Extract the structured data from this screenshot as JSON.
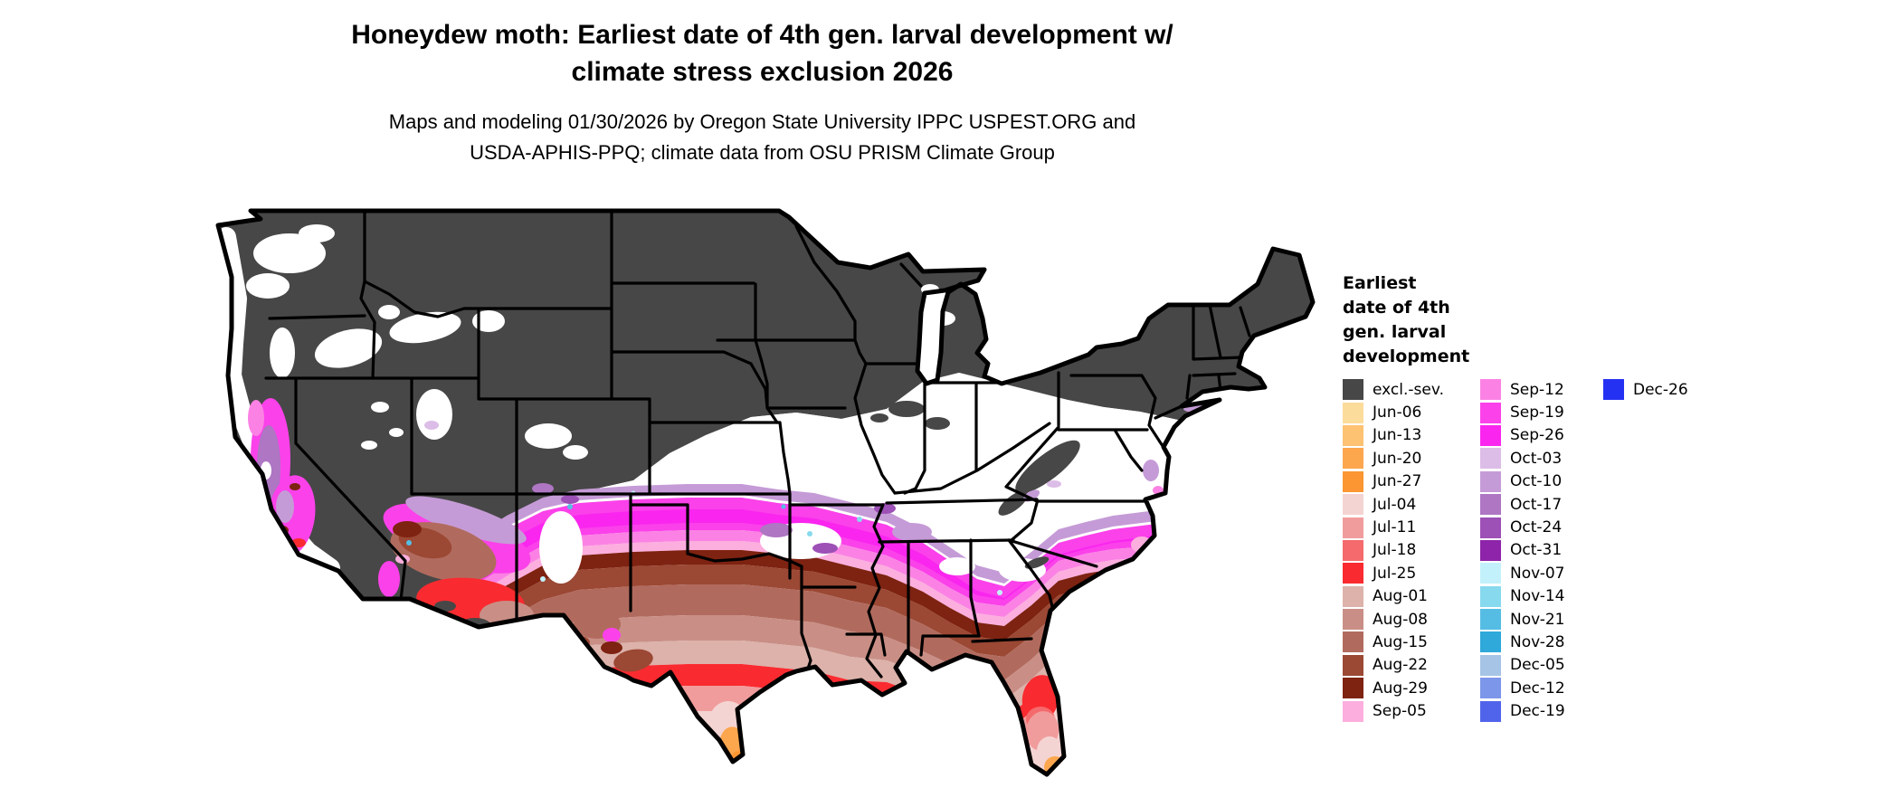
{
  "title": {
    "line1": "Honeydew moth: Earliest date of 4th gen. larval development w/",
    "line2": "climate stress exclusion 2026"
  },
  "subtitle": {
    "line1": "Maps and modeling 01/30/2026 by Oregon State University IPPC USPEST.ORG and",
    "line2": "USDA-APHIS-PPQ; climate data from OSU PRISM Climate Group"
  },
  "legend": {
    "title_lines": [
      "Earliest",
      "date of 4th",
      "gen. larval",
      "development"
    ],
    "columns": [
      [
        "excl.-sev.",
        "Jun-06",
        "Jun-13",
        "Jun-20",
        "Jun-27",
        "Jul-04",
        "Jul-11",
        "Jul-18",
        "Jul-25",
        "Aug-01",
        "Aug-08",
        "Aug-15",
        "Aug-22",
        "Aug-29",
        "Sep-05"
      ],
      [
        "Sep-12",
        "Sep-19",
        "Sep-26",
        "Oct-03",
        "Oct-10",
        "Oct-17",
        "Oct-24",
        "Oct-31",
        "Nov-07",
        "Nov-14",
        "Nov-21",
        "Nov-28",
        "Dec-05",
        "Dec-12",
        "Dec-19"
      ],
      [
        "Dec-26"
      ]
    ]
  },
  "colors": {
    "excl.-sev.": "#474747",
    "Jun-06": "#fcdc9a",
    "Jun-13": "#fdc272",
    "Jun-20": "#fca64e",
    "Jun-27": "#fb9632",
    "Jul-04": "#f4d4d2",
    "Jul-11": "#f19c9c",
    "Jul-18": "#f56a6c",
    "Jul-25": "#f92b30",
    "Aug-01": "#dcb2aa",
    "Aug-08": "#c98f86",
    "Aug-15": "#b16b5e",
    "Aug-22": "#9b4834",
    "Aug-29": "#7e2211",
    "Sep-05": "#fcaede",
    "Sep-12": "#fb82e4",
    "Sep-19": "#fb41ea",
    "Sep-26": "#fa25ef",
    "Oct-03": "#dcbde7",
    "Oct-10": "#c59bd7",
    "Oct-17": "#ae76c3",
    "Oct-24": "#9d50b6",
    "Oct-31": "#8d24a9",
    "Nov-07": "#c3f1fb",
    "Nov-14": "#87d9ee",
    "Nov-21": "#55bde4",
    "Nov-28": "#2ea9d9",
    "Dec-05": "#a6c4e5",
    "Dec-12": "#7c96e9",
    "Dec-19": "#5064eb",
    "Dec-26": "#2531f2",
    "white": "#ffffff",
    "map-border": "#000000"
  },
  "map": {
    "description": "Contiguous United States map of earliest date of 4th generation larval development; northern and western interior states excluded (excl.-sev. gray), with date bands from September magenta through August browns to July reds and June oranges toward the Gulf Coast, south Texas and southern Florida."
  }
}
